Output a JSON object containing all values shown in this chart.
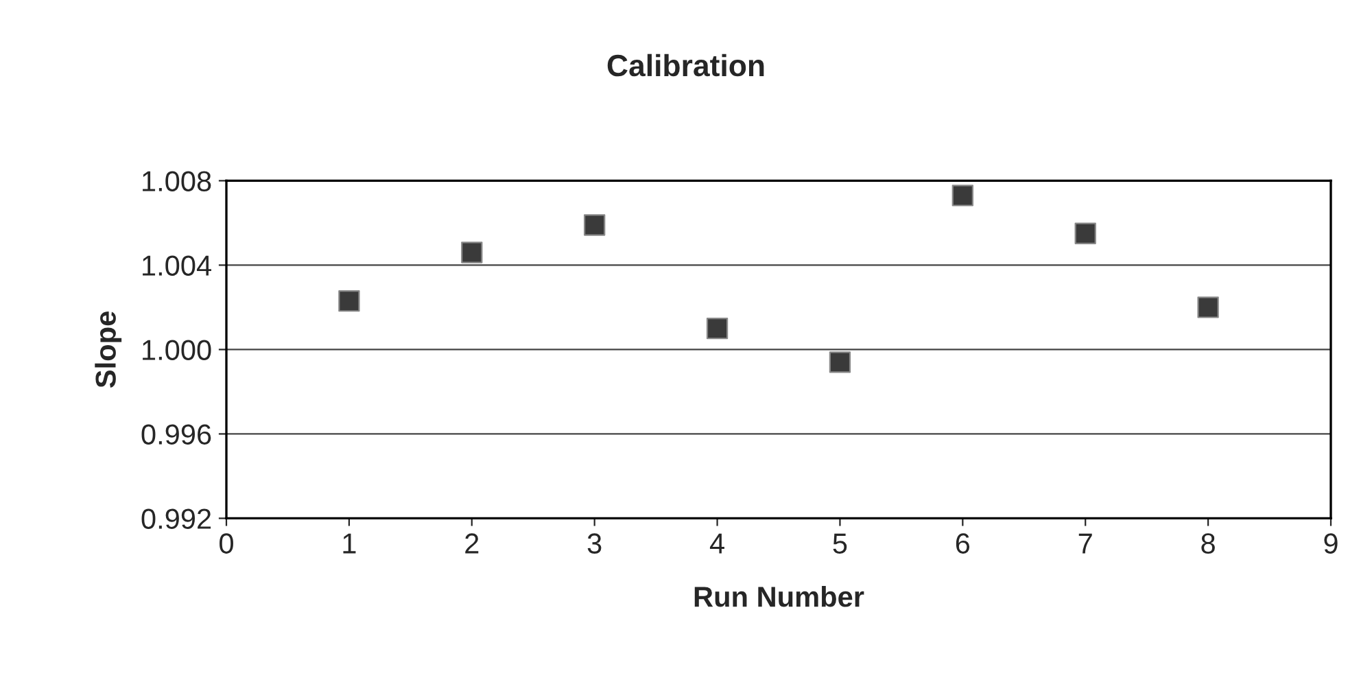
{
  "chart_data": {
    "type": "scatter",
    "title": "Calibration",
    "xlabel": "Run Number",
    "ylabel": "Slope",
    "x": [
      1,
      2,
      3,
      4,
      5,
      6,
      7,
      8
    ],
    "series": [
      {
        "color": "#3a3a3a",
        "values": [
          1.0023,
          1.0046,
          1.0059,
          1.001,
          0.9994,
          1.0073,
          1.0055,
          1.002
        ]
      }
    ],
    "xlim": [
      0,
      9
    ],
    "xticks": [
      0,
      1,
      2,
      3,
      4,
      5,
      6,
      7,
      8,
      9
    ],
    "ylim": [
      0.992,
      1.008
    ],
    "yticks": [
      {
        "value": 0.992,
        "label": "0.992"
      },
      {
        "value": 0.996,
        "label": "0.996"
      },
      {
        "value": 1.0,
        "label": "1.000"
      },
      {
        "value": 1.004,
        "label": "1.004"
      },
      {
        "value": 1.008,
        "label": "1.008"
      }
    ],
    "grid": "y",
    "marker": "square"
  }
}
